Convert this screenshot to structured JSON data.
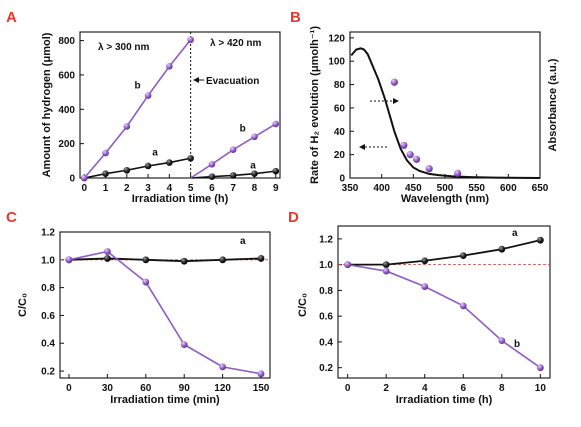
{
  "colors": {
    "panel_label": "#e8382f",
    "series_a_line": "#111111",
    "series_a_marker": "#2b2b2b",
    "series_b": "#8e5cc4",
    "reference_line": "#d23a3a"
  },
  "chart_data": [
    {
      "panel": "A",
      "type": "line",
      "xlabel": "Irradiation time (h)",
      "ylabel": "Amount of hydrogen (μmol)",
      "xlim": [
        -0.2,
        9.2
      ],
      "ylim": [
        0,
        850
      ],
      "xticks": [
        "0",
        "1",
        "2",
        "3",
        "4",
        "5",
        "6",
        "7",
        "8",
        "9"
      ],
      "yticks": [
        "0",
        "200",
        "400",
        "600",
        "800"
      ],
      "annotations": [
        "λ > 300 nm",
        "λ > 420 nm",
        "Evacuation"
      ],
      "marker_at": 5,
      "series": [
        {
          "name": "a",
          "segments": [
            {
              "x": [
                0,
                1,
                2,
                3,
                4,
                5
              ],
              "y": [
                0,
                25,
                45,
                70,
                90,
                115
              ]
            },
            {
              "x": [
                5,
                6,
                7,
                8,
                9
              ],
              "y": [
                0,
                8,
                15,
                25,
                40
              ]
            }
          ]
        },
        {
          "name": "b",
          "segments": [
            {
              "x": [
                0,
                1,
                2,
                3,
                4,
                5
              ],
              "y": [
                0,
                145,
                300,
                480,
                650,
                805
              ]
            },
            {
              "x": [
                5,
                6,
                7,
                8,
                9
              ],
              "y": [
                0,
                80,
                165,
                240,
                315
              ]
            }
          ]
        }
      ]
    },
    {
      "panel": "B",
      "type": "scatter",
      "xlabel": "Wavelength (nm)",
      "ylabel": "Rate of H₂ evolution (μmolh⁻¹)",
      "ylabel_right": "Absorbance (a.u.)",
      "xlim": [
        350,
        650
      ],
      "ylim": [
        0,
        125
      ],
      "xticks": [
        "350",
        "400",
        "450",
        "500",
        "550",
        "600",
        "650"
      ],
      "yticks": [
        "0",
        "20",
        "40",
        "60",
        "80",
        "100",
        "120"
      ],
      "scatter": {
        "x": [
          420,
          435,
          445,
          455,
          475,
          520
        ],
        "y": [
          82,
          28,
          20,
          16,
          8,
          4
        ]
      },
      "absorbance_curve": {
        "x": [
          352,
          360,
          367,
          372,
          378,
          385,
          395,
          405,
          412,
          420,
          430,
          440,
          450,
          460,
          475,
          490,
          510,
          540,
          580,
          650
        ],
        "y": [
          105,
          110,
          111,
          110,
          106,
          97,
          84,
          68,
          55,
          40,
          25,
          15,
          9,
          6,
          3.5,
          2.5,
          1.5,
          0.8,
          0.3,
          0
        ]
      }
    },
    {
      "panel": "C",
      "type": "line",
      "xlabel": "Irradiation time (min)",
      "ylabel": "C/C₀",
      "xlim": [
        -7,
        157
      ],
      "ylim": [
        0.15,
        1.2
      ],
      "xticks": [
        "0",
        "30",
        "60",
        "90",
        "120",
        "150"
      ],
      "yticks": [
        "0.2",
        "0.4",
        "0.6",
        "0.8",
        "1.0",
        "1.2"
      ],
      "reference_y": 1.0,
      "series": [
        {
          "name": "a",
          "x": [
            0,
            30,
            60,
            90,
            120,
            150
          ],
          "y": [
            1.0,
            1.01,
            1.0,
            0.99,
            1.0,
            1.01
          ]
        },
        {
          "name": "b",
          "x": [
            0,
            30,
            60,
            90,
            120,
            150
          ],
          "y": [
            1.0,
            1.06,
            0.84,
            0.39,
            0.23,
            0.18
          ]
        }
      ]
    },
    {
      "panel": "D",
      "type": "line",
      "xlabel": "Irradiation time (h)",
      "ylabel": "C/C₀",
      "xlim": [
        -0.5,
        10.5
      ],
      "ylim": [
        0.12,
        1.3
      ],
      "xticks": [
        "0",
        "2",
        "4",
        "6",
        "8",
        "10"
      ],
      "yticks": [
        "0.2",
        "0.4",
        "0.6",
        "0.8",
        "1.0",
        "1.2"
      ],
      "reference_y": 1.0,
      "series": [
        {
          "name": "a",
          "x": [
            0,
            2,
            4,
            6,
            8,
            10
          ],
          "y": [
            1.0,
            1.0,
            1.03,
            1.07,
            1.12,
            1.19
          ]
        },
        {
          "name": "b",
          "x": [
            0,
            2,
            4,
            6,
            8,
            10
          ],
          "y": [
            1.0,
            0.95,
            0.83,
            0.68,
            0.41,
            0.2
          ]
        }
      ]
    }
  ]
}
